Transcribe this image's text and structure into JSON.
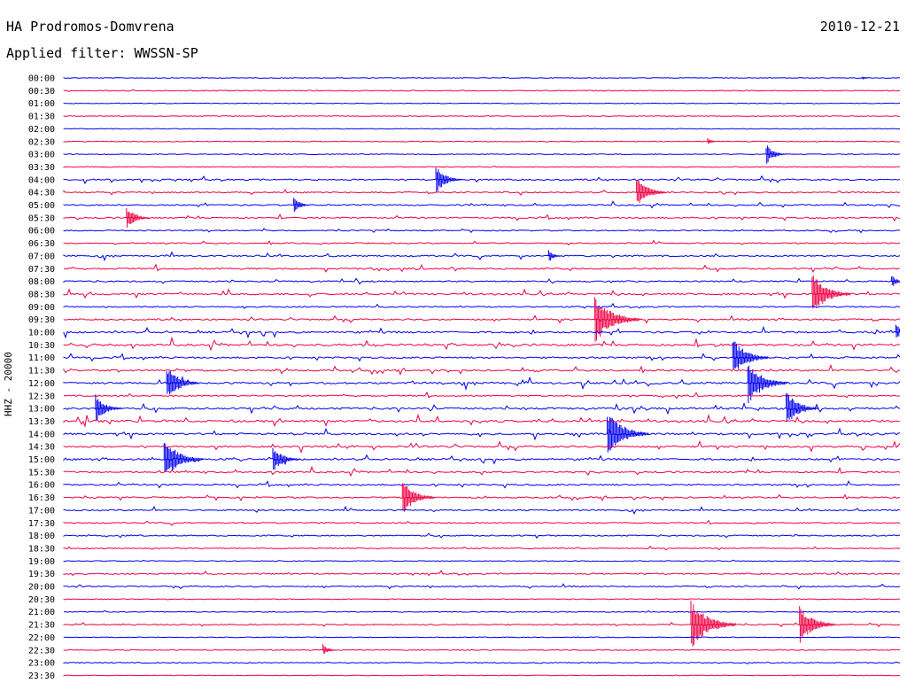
{
  "header": {
    "station": "HA Prodromos-Domvrena",
    "filter": "Applied filter: WWSSN-SP",
    "date": "2010-12-21"
  },
  "chart_data": {
    "type": "line",
    "title": "HA Prodromos-Domvrena",
    "subtitle": "Applied filter: WWSSN-SP",
    "date": "2010-12-21",
    "ylabel": "HHZ - 20000",
    "xlabel": "",
    "grid": false,
    "colors": [
      "#0000ee",
      "#ee0044"
    ],
    "traces": [
      {
        "time": "00:00",
        "color": "#0000ee",
        "activity": 0.05
      },
      {
        "time": "00:30",
        "color": "#ee0044",
        "activity": 0.15
      },
      {
        "time": "01:00",
        "color": "#0000ee",
        "activity": 0.02
      },
      {
        "time": "01:30",
        "color": "#ee0044",
        "activity": 0.05
      },
      {
        "time": "02:00",
        "color": "#0000ee",
        "activity": 0.02
      },
      {
        "time": "02:30",
        "color": "#ee0044",
        "activity": 0.05
      },
      {
        "time": "03:00",
        "color": "#0000ee",
        "activity": 0.1
      },
      {
        "time": "03:30",
        "color": "#ee0044",
        "activity": 0.15
      },
      {
        "time": "04:00",
        "color": "#0000ee",
        "activity": 0.5
      },
      {
        "time": "04:30",
        "color": "#ee0044",
        "activity": 0.35
      },
      {
        "time": "05:00",
        "color": "#0000ee",
        "activity": 0.45
      },
      {
        "time": "05:30",
        "color": "#ee0044",
        "activity": 0.45
      },
      {
        "time": "06:00",
        "color": "#0000ee",
        "activity": 0.3
      },
      {
        "time": "06:30",
        "color": "#ee0044",
        "activity": 0.35
      },
      {
        "time": "07:00",
        "color": "#0000ee",
        "activity": 0.55
      },
      {
        "time": "07:30",
        "color": "#ee0044",
        "activity": 0.6
      },
      {
        "time": "08:00",
        "color": "#0000ee",
        "activity": 0.45
      },
      {
        "time": "08:30",
        "color": "#ee0044",
        "activity": 0.65
      },
      {
        "time": "09:00",
        "color": "#0000ee",
        "activity": 0.45
      },
      {
        "time": "09:30",
        "color": "#ee0044",
        "activity": 0.5
      },
      {
        "time": "10:00",
        "color": "#0000ee",
        "activity": 0.75
      },
      {
        "time": "10:30",
        "color": "#ee0044",
        "activity": 0.85
      },
      {
        "time": "11:00",
        "color": "#0000ee",
        "activity": 0.6
      },
      {
        "time": "11:30",
        "color": "#ee0044",
        "activity": 0.65
      },
      {
        "time": "12:00",
        "color": "#0000ee",
        "activity": 0.8
      },
      {
        "time": "12:30",
        "color": "#ee0044",
        "activity": 0.5
      },
      {
        "time": "13:00",
        "color": "#0000ee",
        "activity": 0.85
      },
      {
        "time": "13:30",
        "color": "#ee0044",
        "activity": 0.85
      },
      {
        "time": "14:00",
        "color": "#0000ee",
        "activity": 0.8
      },
      {
        "time": "14:30",
        "color": "#ee0044",
        "activity": 0.7
      },
      {
        "time": "15:00",
        "color": "#0000ee",
        "activity": 0.7
      },
      {
        "time": "15:30",
        "color": "#ee0044",
        "activity": 0.6
      },
      {
        "time": "16:00",
        "color": "#0000ee",
        "activity": 0.55
      },
      {
        "time": "16:30",
        "color": "#ee0044",
        "activity": 0.45
      },
      {
        "time": "17:00",
        "color": "#0000ee",
        "activity": 0.45
      },
      {
        "time": "17:30",
        "color": "#ee0044",
        "activity": 0.35
      },
      {
        "time": "18:00",
        "color": "#0000ee",
        "activity": 0.4
      },
      {
        "time": "18:30",
        "color": "#ee0044",
        "activity": 0.25
      },
      {
        "time": "19:00",
        "color": "#0000ee",
        "activity": 0.15
      },
      {
        "time": "19:30",
        "color": "#ee0044",
        "activity": 0.45
      },
      {
        "time": "20:00",
        "color": "#0000ee",
        "activity": 0.35
      },
      {
        "time": "20:30",
        "color": "#ee0044",
        "activity": 0.08
      },
      {
        "time": "21:00",
        "color": "#0000ee",
        "activity": 0.12
      },
      {
        "time": "21:30",
        "color": "#ee0044",
        "activity": 0.3
      },
      {
        "time": "22:00",
        "color": "#0000ee",
        "activity": 0.05
      },
      {
        "time": "22:30",
        "color": "#ee0044",
        "activity": 0.12
      },
      {
        "time": "23:00",
        "color": "#0000ee",
        "activity": 0.2
      },
      {
        "time": "23:30",
        "color": "#ee0044",
        "activity": 0.05
      }
    ],
    "events": [
      {
        "time": "00:00",
        "at": 0.955,
        "amp": 2
      },
      {
        "time": "02:30",
        "at": 0.77,
        "amp": 4
      },
      {
        "time": "03:00",
        "at": 0.84,
        "amp": 12
      },
      {
        "time": "04:00",
        "at": 0.445,
        "amp": 16
      },
      {
        "time": "04:30",
        "at": 0.685,
        "amp": 18
      },
      {
        "time": "05:00",
        "at": 0.275,
        "amp": 10
      },
      {
        "time": "05:30",
        "at": 0.075,
        "amp": 14
      },
      {
        "time": "07:00",
        "at": 0.58,
        "amp": 8
      },
      {
        "time": "08:00",
        "at": 0.99,
        "amp": 8
      },
      {
        "time": "08:30",
        "at": 0.895,
        "amp": 24
      },
      {
        "time": "09:30",
        "at": 0.635,
        "amp": 28
      },
      {
        "time": "10:00",
        "at": 0.995,
        "amp": 10
      },
      {
        "time": "11:00",
        "at": 0.8,
        "amp": 22
      },
      {
        "time": "12:00",
        "at": 0.123,
        "amp": 20
      },
      {
        "time": "12:00",
        "at": 0.818,
        "amp": 25
      },
      {
        "time": "13:00",
        "at": 0.038,
        "amp": 16
      },
      {
        "time": "13:00",
        "at": 0.864,
        "amp": 20
      },
      {
        "time": "14:00",
        "at": 0.65,
        "amp": 26
      },
      {
        "time": "15:00",
        "at": 0.12,
        "amp": 24
      },
      {
        "time": "15:00",
        "at": 0.25,
        "amp": 16
      },
      {
        "time": "16:30",
        "at": 0.405,
        "amp": 20
      },
      {
        "time": "21:30",
        "at": 0.75,
        "amp": 28
      },
      {
        "time": "21:30",
        "at": 0.88,
        "amp": 22
      },
      {
        "time": "22:30",
        "at": 0.31,
        "amp": 8
      }
    ]
  }
}
